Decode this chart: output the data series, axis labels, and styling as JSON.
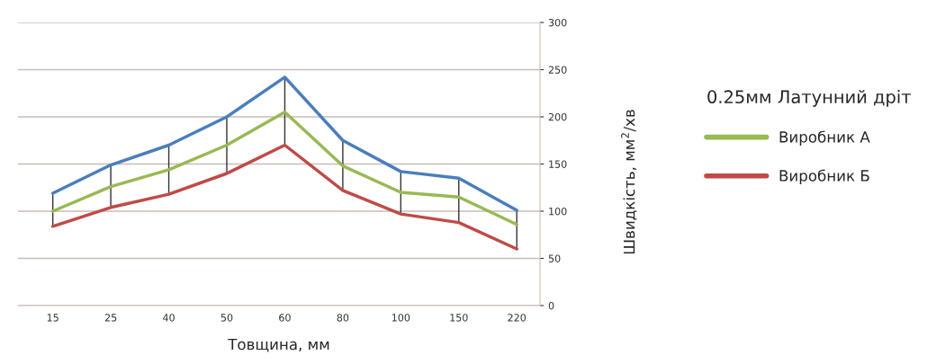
{
  "chart_data": {
    "type": "line",
    "xlabel": "Товщина, мм",
    "ylabel": "Швидкість, мм$^{2}$/хв",
    "legend_title": "0.25мм Латунний дріт",
    "categories": [
      "15",
      "25",
      "40",
      "50",
      "60",
      "80",
      "100",
      "150",
      "220"
    ],
    "series": [
      {
        "color": "#4a7ebb",
        "values": [
          119,
          149,
          170,
          200,
          242,
          175,
          142,
          135,
          101
        ]
      },
      {
        "name": "Виробник А",
        "color": "#98b954",
        "values": [
          100,
          126,
          144,
          170,
          205,
          148,
          120,
          115,
          86
        ]
      },
      {
        "name": "Виробник Б",
        "color": "#be4b48",
        "values": [
          84,
          104,
          118,
          140,
          170,
          122,
          97,
          88,
          60
        ]
      }
    ],
    "ylim": [
      0,
      300
    ],
    "yticks": [
      0,
      50,
      100,
      150,
      200,
      250,
      300
    ],
    "grid": "y",
    "legend": "right",
    "marker": "none",
    "line_style": "solid"
  }
}
